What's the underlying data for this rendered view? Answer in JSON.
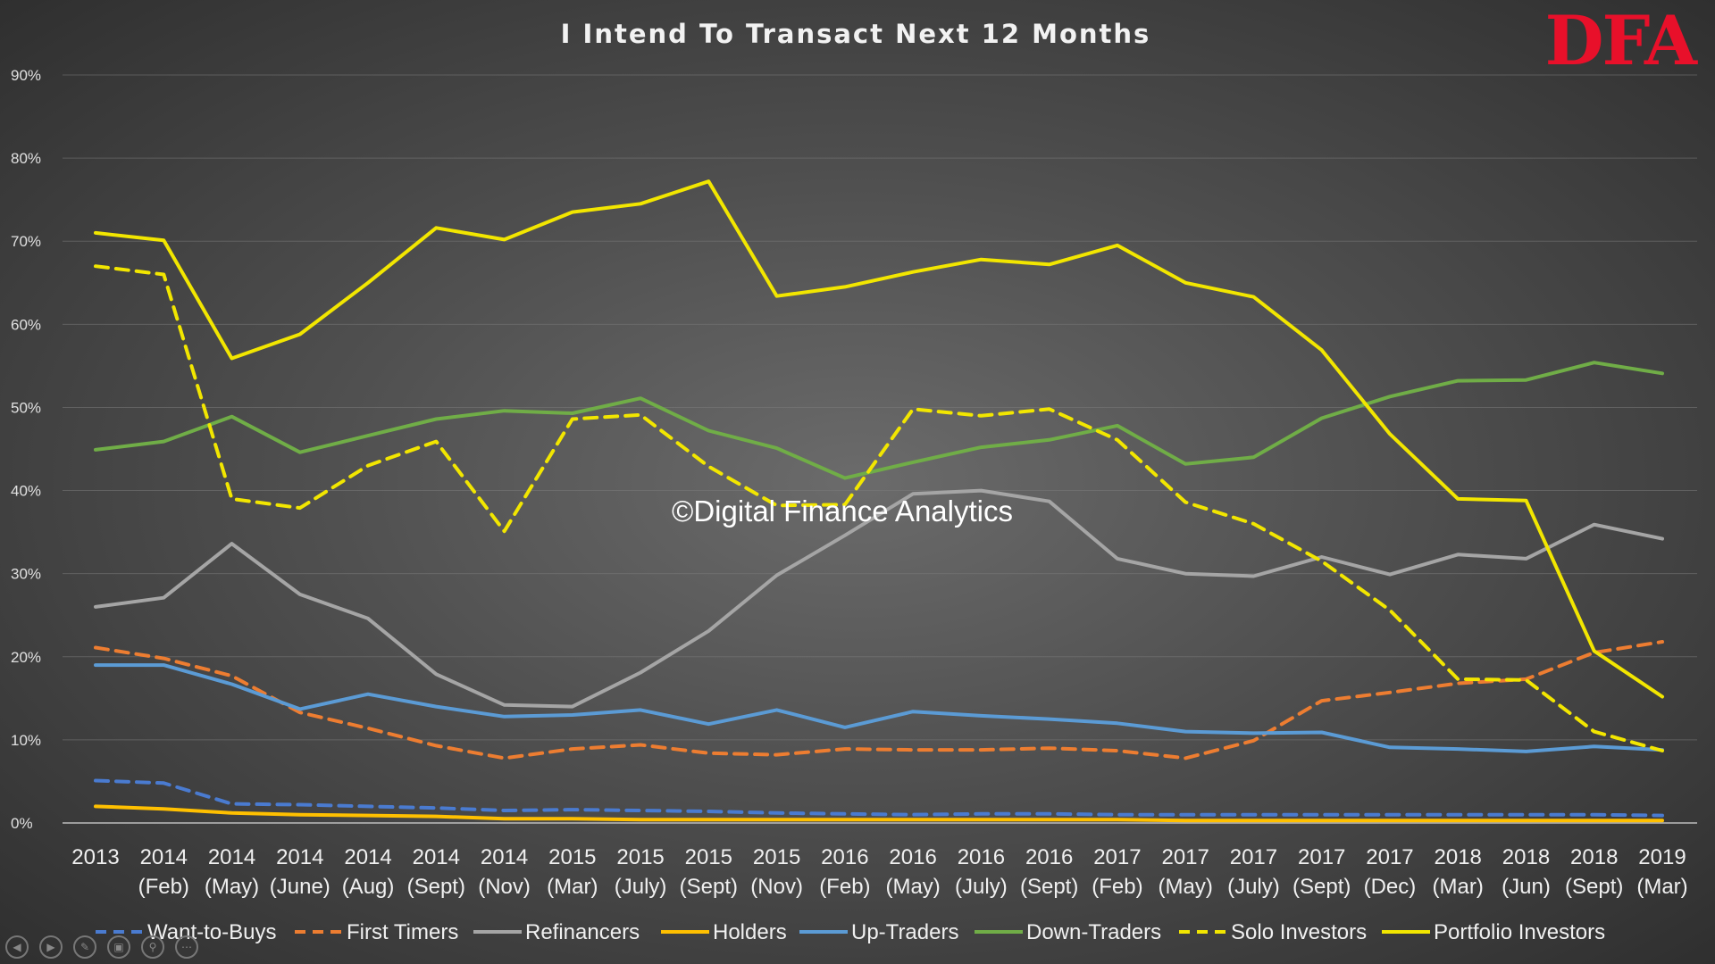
{
  "logo_text": "DFA",
  "watermark": "©Digital Finance Analytics",
  "icons": [
    "prev-slide-icon",
    "next-slide-icon",
    "pen-icon",
    "slides-icon",
    "zoom-icon",
    "more-icon"
  ],
  "colors": {
    "want_to_buys": "#4a7bd0",
    "first_timers": "#ed7d31",
    "refinancers": "#a5a5a5",
    "holders": "#ffc000",
    "up_traders": "#5b9bd5",
    "down_traders": "#70ad47",
    "solo_investors": "#f2e600",
    "portfolio_investors": "#f2e600",
    "logo": "#e8102a"
  },
  "chart_data": {
    "type": "line",
    "title": "I Intend To Transact Next 12 Months",
    "xlabel": "",
    "ylabel": "",
    "ylim": [
      0,
      90
    ],
    "yticks": [
      "0%",
      "10%",
      "20%",
      "30%",
      "40%",
      "50%",
      "60%",
      "70%",
      "80%",
      "90%"
    ],
    "grid": true,
    "legend_position": "bottom",
    "categories": [
      [
        "2013",
        ""
      ],
      [
        "2014",
        "(Feb)"
      ],
      [
        "2014",
        "(May)"
      ],
      [
        "2014",
        "(June)"
      ],
      [
        "2014",
        "(Aug)"
      ],
      [
        "2014",
        "(Sept)"
      ],
      [
        "2014",
        "(Nov)"
      ],
      [
        "2015",
        "(Mar)"
      ],
      [
        "2015",
        "(July)"
      ],
      [
        "2015",
        "(Sept)"
      ],
      [
        "2015",
        "(Nov)"
      ],
      [
        "2016",
        "(Feb)"
      ],
      [
        "2016",
        "(May)"
      ],
      [
        "2016",
        "(July)"
      ],
      [
        "2016",
        "(Sept)"
      ],
      [
        "2017",
        "(Feb)"
      ],
      [
        "2017",
        "(May)"
      ],
      [
        "2017",
        "(July)"
      ],
      [
        "2017",
        "(Sept)"
      ],
      [
        "2017",
        "(Dec)"
      ],
      [
        "2018",
        "(Mar)"
      ],
      [
        "2018",
        "(Jun)"
      ],
      [
        "2018",
        "(Sept)"
      ],
      [
        "2019",
        "(Mar)"
      ]
    ],
    "series": [
      {
        "key": "want_to_buys",
        "name": "Want-to-Buys",
        "dashed": true,
        "values": [
          5.1,
          4.8,
          2.3,
          2.2,
          2.0,
          1.8,
          1.5,
          1.6,
          1.5,
          1.4,
          1.2,
          1.1,
          1.0,
          1.1,
          1.1,
          1.0,
          1.0,
          1.0,
          1.0,
          1.0,
          1.0,
          1.0,
          1.0,
          0.9
        ]
      },
      {
        "key": "first_timers",
        "name": "First Timers",
        "dashed": true,
        "values": [
          21.1,
          19.8,
          17.7,
          13.3,
          11.4,
          9.3,
          7.8,
          8.9,
          9.4,
          8.4,
          8.2,
          8.9,
          8.8,
          8.8,
          9.0,
          8.7,
          7.8,
          9.9,
          14.7,
          15.7,
          16.8,
          17.3,
          20.5,
          21.8
        ]
      },
      {
        "key": "refinancers",
        "name": "Refinancers",
        "dashed": false,
        "values": [
          26.0,
          27.1,
          33.6,
          27.5,
          24.6,
          17.9,
          14.2,
          14.0,
          18.1,
          23.1,
          29.8,
          34.6,
          39.6,
          40.0,
          38.7,
          31.8,
          30.0,
          29.7,
          32.0,
          29.9,
          32.3,
          31.8,
          35.9,
          34.2
        ]
      },
      {
        "key": "holders",
        "name": "Holders",
        "dashed": false,
        "values": [
          2.0,
          1.7,
          1.2,
          1.0,
          0.9,
          0.8,
          0.5,
          0.5,
          0.4,
          0.4,
          0.4,
          0.4,
          0.4,
          0.4,
          0.4,
          0.4,
          0.3,
          0.3,
          0.3,
          0.3,
          0.3,
          0.3,
          0.3,
          0.3
        ]
      },
      {
        "key": "up_traders",
        "name": "Up-Traders",
        "dashed": false,
        "values": [
          19.0,
          19.0,
          16.7,
          13.7,
          15.5,
          14.0,
          12.8,
          13.0,
          13.6,
          11.9,
          13.6,
          11.5,
          13.4,
          12.9,
          12.5,
          12.0,
          11.0,
          10.8,
          10.9,
          9.1,
          8.9,
          8.6,
          9.2,
          8.8
        ]
      },
      {
        "key": "down_traders",
        "name": "Down-Traders",
        "dashed": false,
        "values": [
          44.9,
          45.9,
          48.9,
          44.6,
          46.6,
          48.6,
          49.6,
          49.3,
          51.1,
          47.2,
          45.1,
          41.5,
          43.4,
          45.2,
          46.1,
          47.8,
          43.2,
          44.0,
          48.7,
          51.3,
          53.2,
          53.3,
          55.4,
          54.1
        ]
      },
      {
        "key": "solo_investors",
        "name": "Solo Investors",
        "dashed": true,
        "values": [
          67.0,
          66.0,
          39.0,
          37.9,
          43.0,
          45.9,
          35.1,
          48.6,
          49.1,
          42.9,
          38.2,
          38.3,
          49.8,
          49.0,
          49.8,
          46.1,
          38.6,
          36.0,
          31.5,
          25.6,
          17.3,
          17.2,
          11.0,
          8.7
        ]
      },
      {
        "key": "portfolio_investors",
        "name": "Portfolio Investors",
        "dashed": false,
        "values": [
          71.0,
          70.1,
          55.9,
          58.8,
          65.0,
          71.6,
          70.2,
          73.5,
          74.5,
          77.2,
          63.4,
          64.5,
          66.3,
          67.8,
          67.2,
          69.5,
          65.0,
          63.3,
          56.9,
          46.8,
          39.0,
          38.8,
          20.7,
          15.2
        ]
      }
    ]
  }
}
